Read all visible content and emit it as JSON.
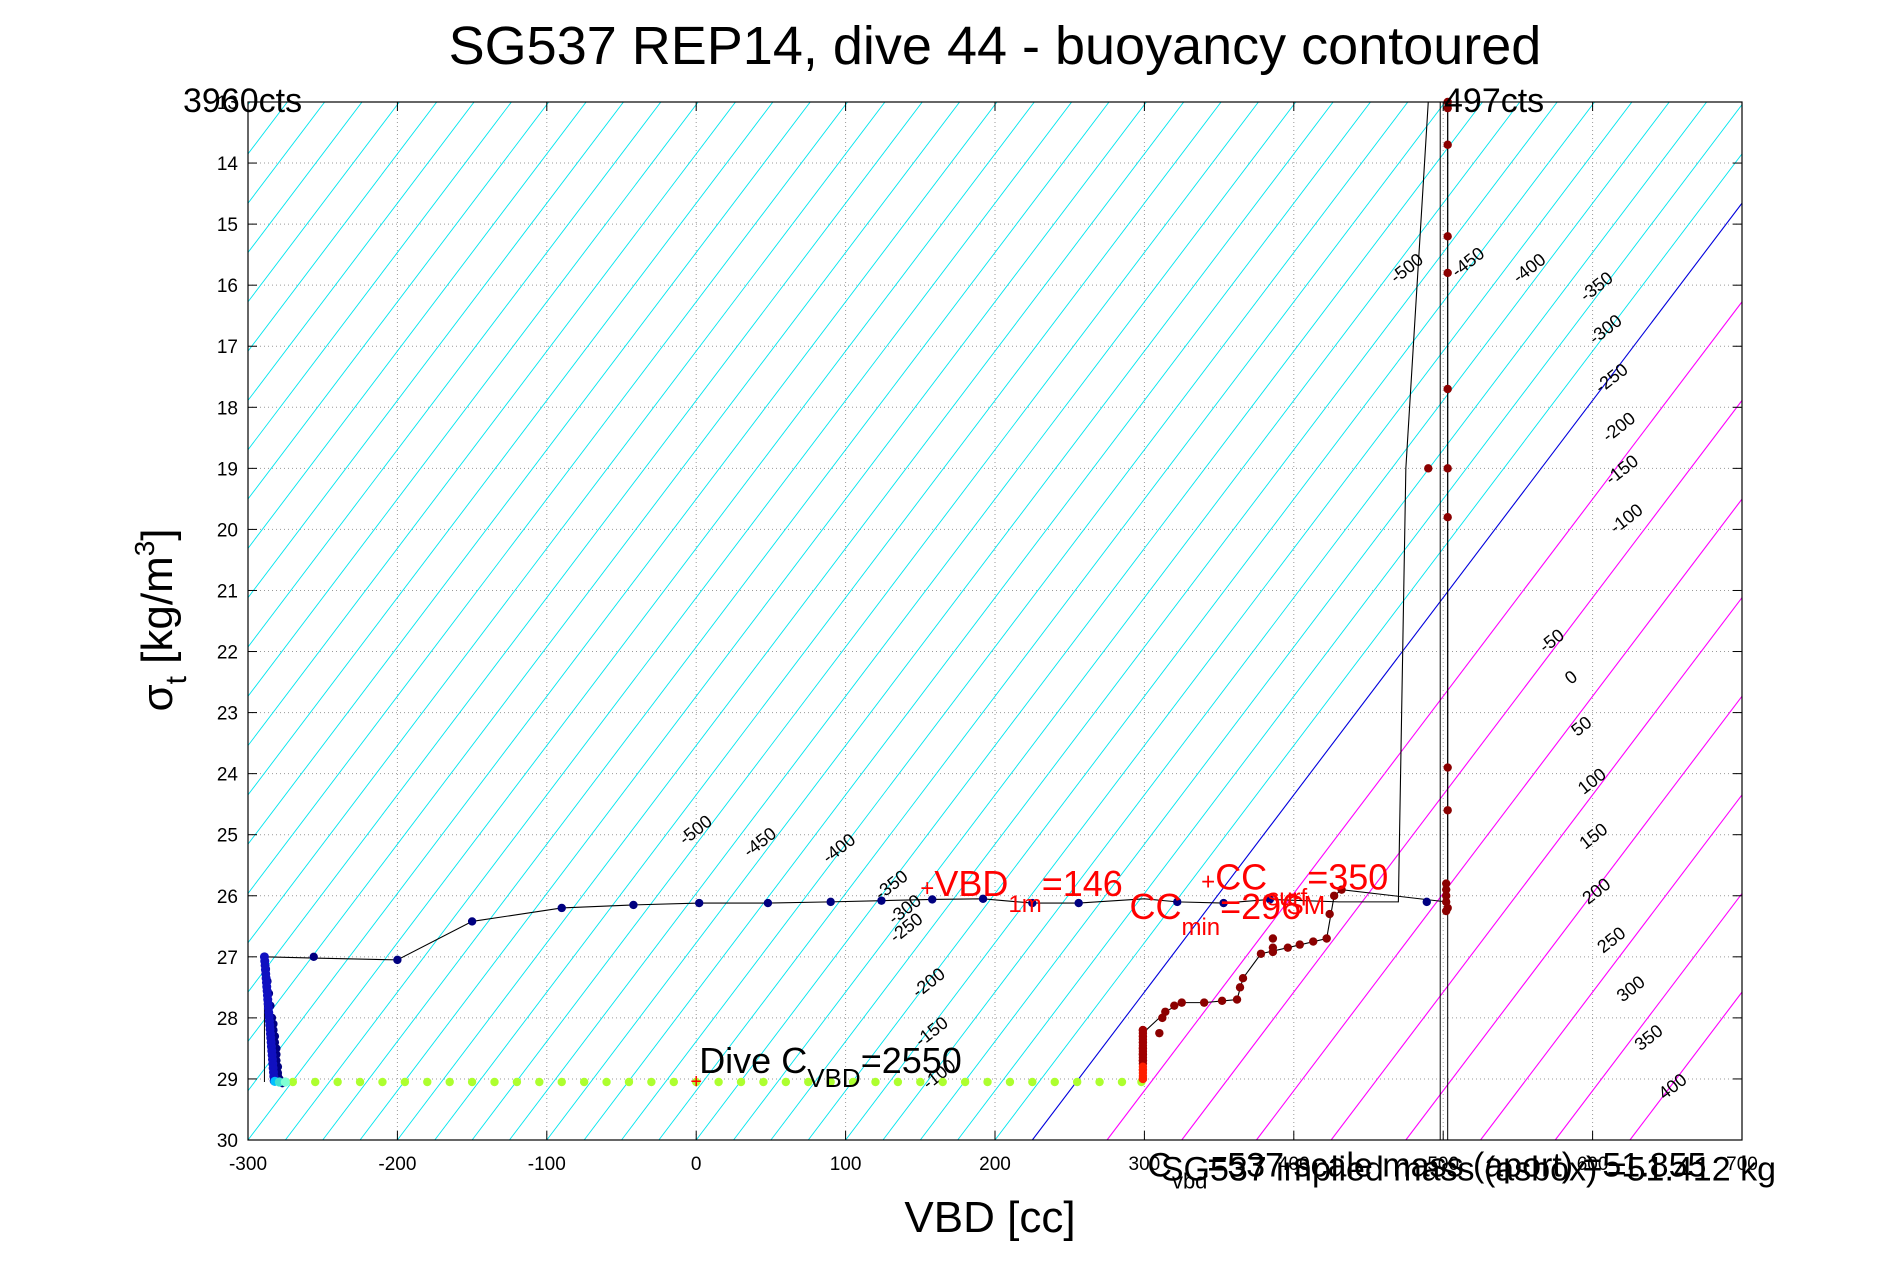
{
  "chart_data": {
    "type": "scatter",
    "title": "SG537 REP14, dive 44 - buoyancy contoured",
    "xlabel": "VBD [cc]",
    "ylabel_main": "σ",
    "ylabel_sub": "t",
    "ylabel_unit": " [kg/m",
    "ylabel_sup": "3",
    "ylabel_close": "]",
    "xlim": [
      -300,
      700
    ],
    "ylim": [
      13,
      30
    ],
    "y_reversed": true,
    "grid": true,
    "x_ticks": [
      -300,
      -200,
      -100,
      0,
      100,
      200,
      300,
      400,
      500,
      600,
      700
    ],
    "x_tick_labels": [
      "-300",
      "-200",
      "-100",
      "0",
      "100",
      "200",
      "300",
      "400",
      "500",
      "600",
      "700"
    ],
    "y_ticks": [
      13,
      14,
      15,
      16,
      17,
      18,
      19,
      20,
      21,
      22,
      23,
      24,
      25,
      26,
      27,
      28,
      29,
      30
    ],
    "y_tick_labels": [
      "13",
      "14",
      "15",
      "16",
      "17",
      "18",
      "19",
      "20",
      "21",
      "22",
      "23",
      "24",
      "25",
      "26",
      "27",
      "28",
      "29",
      "30"
    ],
    "buoyancy_contours": {
      "slope_sigma_per_cc": 0.0323,
      "zero_line_x_at_sigma_30": 225,
      "levels": [
        -500,
        -450,
        -400,
        -350,
        -300,
        -250,
        -200,
        -150,
        -100,
        -50,
        0,
        50,
        100,
        150,
        200,
        250,
        300,
        350,
        400
      ],
      "colors": {
        "negative": "#00e5ee",
        "zero": "#0000dd",
        "positive": "#ff00ff"
      },
      "labels_upper": [
        "-500",
        "-450",
        "-400",
        "-350",
        "-300",
        "-250",
        "-200",
        "-150",
        "-100"
      ],
      "labels_lower": [
        "-500",
        "-450",
        "-400",
        "-350",
        "-300",
        "-250",
        "-200",
        "-150",
        "-100"
      ],
      "labels_right": [
        "-50",
        "0",
        "50",
        "100",
        "150",
        "200",
        "250",
        "300",
        "350",
        "400"
      ]
    },
    "corner_labels": {
      "left": "3960cts",
      "right": "497cts"
    },
    "series": [
      {
        "marker_color": "#000080",
        "x": [
          -289,
          -288,
          -287,
          -286,
          -285,
          -284,
          -283,
          -283,
          -282,
          -282,
          -281,
          -281,
          -281,
          -280,
          -280,
          -280,
          -279,
          -279,
          -278,
          -277
        ],
        "y": [
          27.0,
          27.2,
          27.4,
          27.6,
          27.8,
          28.0,
          28.1,
          28.2,
          28.3,
          28.4,
          28.5,
          28.6,
          28.7,
          28.8,
          28.9,
          28.95,
          29.0,
          29.02,
          29.05,
          29.07
        ]
      },
      {
        "marker_color": "#000080",
        "x": [
          -256,
          -200,
          -150,
          -90,
          -42,
          2,
          48,
          90,
          124,
          158,
          192,
          225,
          256
        ],
        "y": [
          27.0,
          27.05,
          26.42,
          26.2,
          26.15,
          26.12,
          26.12,
          26.1,
          26.08,
          26.06,
          26.05,
          26.12,
          26.12
        ]
      },
      {
        "marker_color": "#000080",
        "x": [
          322,
          353,
          384,
          489
        ],
        "y": [
          26.1,
          26.12,
          26.06,
          26.1
        ]
      },
      {
        "marker_color": "#adff2f",
        "x": [
          -270,
          -255,
          -240,
          -225,
          -210,
          -195,
          -180,
          -165,
          -150,
          -135,
          -120,
          -105,
          -90,
          -75,
          -60,
          -45,
          -30,
          -15,
          0,
          15,
          30,
          45,
          60,
          75,
          90,
          105,
          120,
          135,
          150,
          165,
          180,
          195,
          210,
          225,
          240,
          255,
          270,
          285,
          298
        ],
        "y": [
          29.05,
          29.05,
          29.05,
          29.05,
          29.05,
          29.05,
          29.05,
          29.05,
          29.05,
          29.05,
          29.05,
          29.05,
          29.05,
          29.05,
          29.05,
          29.05,
          29.05,
          29.05,
          29.05,
          29.05,
          29.05,
          29.05,
          29.05,
          29.05,
          29.05,
          29.05,
          29.05,
          29.05,
          29.05,
          29.05,
          29.05,
          29.05,
          29.05,
          29.05,
          29.05,
          29.05,
          29.05,
          29.05,
          29.05
        ]
      },
      {
        "marker_color": "#ff0000",
        "x": [
          299,
          299,
          299,
          299,
          299
        ],
        "y": [
          28.3,
          28.5,
          28.7,
          28.85,
          29.0
        ]
      },
      {
        "marker_color": "#8b0000",
        "x": [
          299,
          299,
          299,
          310,
          312,
          314,
          320,
          325,
          340,
          352,
          362,
          364,
          366,
          378,
          386,
          386,
          386,
          396,
          404,
          413,
          422,
          424,
          427,
          432,
          502,
          502,
          502,
          502,
          502,
          503,
          503,
          503,
          503,
          503,
          503,
          503,
          503,
          503,
          503,
          503,
          490
        ],
        "y": [
          28.2,
          28.4,
          28.6,
          28.25,
          28.0,
          27.9,
          27.8,
          27.75,
          27.75,
          27.72,
          27.7,
          27.5,
          27.35,
          26.95,
          26.92,
          26.85,
          26.7,
          26.85,
          26.8,
          26.75,
          26.7,
          26.3,
          26.0,
          25.9,
          26.25,
          26.1,
          26.0,
          25.9,
          25.8,
          24.6,
          23.9,
          19.8,
          17.7,
          15.8,
          15.2,
          13.7,
          13.1,
          13.0,
          19.0,
          26.2,
          19.0
        ]
      }
    ],
    "trace_line": {
      "x": [
        -289,
        -256,
        -200,
        -150,
        -90,
        -42,
        2,
        48,
        90,
        124,
        158,
        192,
        225,
        256,
        300,
        322,
        353,
        384,
        430,
        470,
        475,
        490,
        500,
        503,
        503
      ],
      "y": [
        27.0,
        27.02,
        27.05,
        26.42,
        26.2,
        26.15,
        26.12,
        26.12,
        26.1,
        26.08,
        26.06,
        26.05,
        26.12,
        26.12,
        26.05,
        26.1,
        26.12,
        26.06,
        26.1,
        26.1,
        19.0,
        13.0,
        13.0,
        13.0,
        26.1
      ]
    },
    "ascent_line": {
      "x": [
        299,
        310,
        314,
        325,
        340,
        362,
        366,
        378,
        396,
        422,
        427,
        432,
        502
      ],
      "y": [
        28.25,
        28.0,
        27.9,
        27.75,
        27.75,
        27.7,
        27.35,
        26.95,
        26.85,
        26.7,
        26.0,
        25.9,
        26.1
      ]
    },
    "vertical_lines": [
      498,
      503
    ],
    "annotations": {
      "vbd_1m": {
        "prefix": "+",
        "main": "VBD",
        "sub": "1m",
        "value": "=146",
        "x": 150,
        "y": 26.0
      },
      "cc_min": {
        "main": "CC",
        "sub": "min",
        "value": "=296",
        "x": 290,
        "y": 26.2
      },
      "cc_surf": {
        "prefix": "+",
        "main": "CC",
        "sub": "surf",
        "value": "=350",
        "x": 338,
        "y": 25.9
      },
      "sm": {
        "main": "SM",
        "value": "",
        "x": 395,
        "y": 26.3
      },
      "dive_cvbd": {
        "main": "Dive C",
        "sub": "VBD",
        "value": "=2550",
        "x": 2,
        "y": 28.9
      },
      "bottom_right_1": {
        "main": "C",
        "sub": "vbd",
        "value": "=537 scale mass (aport) =51.855",
        "x": 300,
        "y": 30.6
      },
      "bottom_right_2": {
        "text": "SG537 implied mass (asbox) =51.412 kg",
        "x": 300,
        "y": 30.6
      }
    }
  }
}
